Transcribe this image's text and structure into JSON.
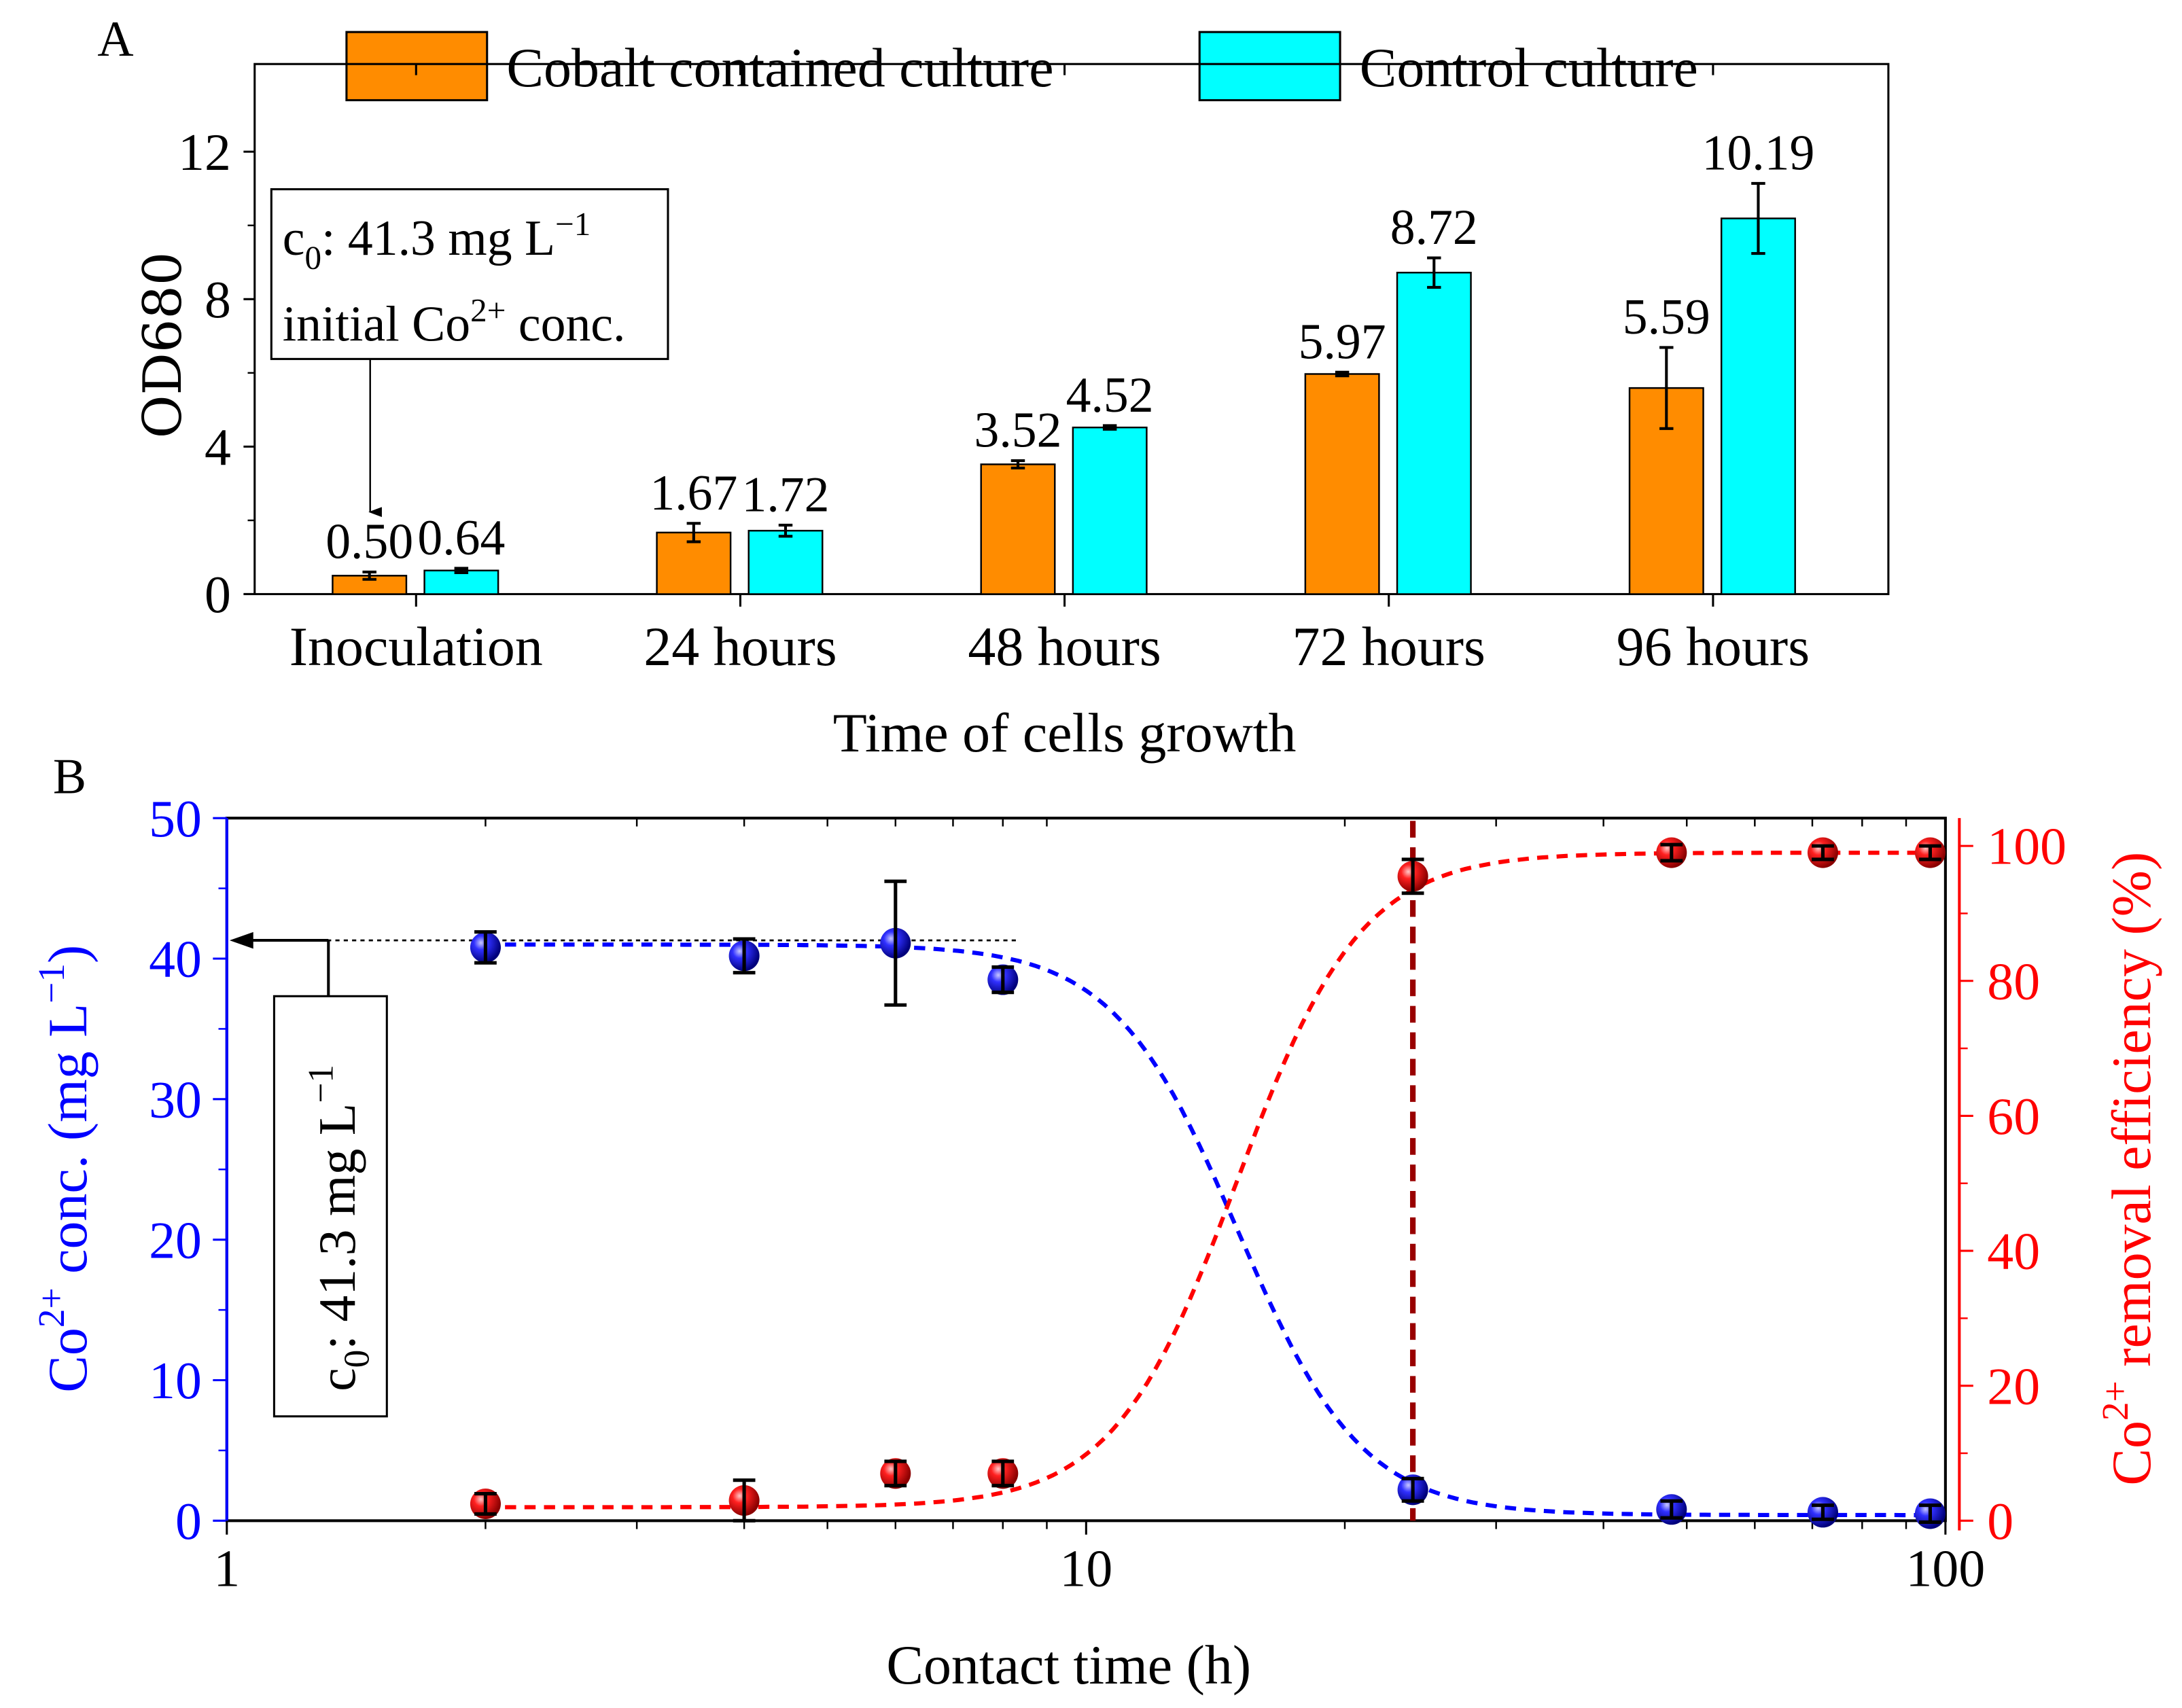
{
  "chart_data": [
    {
      "panel_label": "A",
      "type": "bar",
      "xlabel": "Time of cells growth",
      "ylabel": "OD680",
      "ylim": [
        0,
        12.6
      ],
      "yticks": [
        "0",
        "4",
        "8",
        "12"
      ],
      "categories": [
        "Inoculation",
        "24 hours",
        "48 hours",
        "72 hours",
        "96 hours"
      ],
      "series": [
        {
          "name": "Cobalt contained culture",
          "color": "#FF8C00",
          "values": [
            0.5,
            1.67,
            3.52,
            5.97,
            5.59
          ],
          "errors": [
            0.1,
            0.25,
            0.1,
            0.05,
            1.1
          ],
          "labels": [
            "0.50",
            "1.67",
            "3.52",
            "5.97",
            "5.59"
          ]
        },
        {
          "name": "Control culture",
          "color": "#00FFFF",
          "values": [
            0.64,
            1.72,
            4.52,
            8.72,
            10.19
          ],
          "errors": [
            0.06,
            0.15,
            0.05,
            0.4,
            0.95
          ],
          "labels": [
            "0.64",
            "1.72",
            "4.52",
            "8.72",
            "10.19"
          ]
        }
      ],
      "legend": "top",
      "annotation": {
        "line1_base": "c",
        "line1_sub": "0",
        "line1_rest": ": 41.3 mg L",
        "line1_sup": "−1",
        "line2_pre": "initial Co",
        "line2_sup": "2+",
        "line2_post": " conc."
      }
    },
    {
      "panel_label": "B",
      "type": "scatter",
      "xlabel": "Contact time (h)",
      "xscale": "log",
      "xlim": [
        1,
        100
      ],
      "xticks": [
        "1",
        "10",
        "100"
      ],
      "ylabel_left": {
        "pre": "Co",
        "sup": "2+",
        "mid": " conc. (mg L",
        "sup2": "−1",
        "post": ")"
      },
      "ylabel_right": {
        "pre": "Co",
        "sup": "2+",
        "post": " removal efficiency (%)"
      },
      "ylim_left": [
        0,
        50
      ],
      "ylim_right": [
        0,
        104
      ],
      "yticks_left": [
        "0",
        "10",
        "20",
        "30",
        "40",
        "50"
      ],
      "yticks_right": [
        "0",
        "20",
        "40",
        "60",
        "80",
        "100"
      ],
      "x": [
        2,
        4,
        6,
        8,
        24,
        48,
        72,
        96
      ],
      "series": [
        {
          "name": "Co2+ conc.",
          "axis": "left",
          "color": "#0000FF",
          "values": [
            40.8,
            40.2,
            41.1,
            38.5,
            2.2,
            0.8,
            0.6,
            0.5
          ],
          "errors": [
            1.1,
            1.2,
            4.4,
            0.9,
            0.8,
            0.6,
            0.5,
            0.6
          ],
          "fit": {
            "bottom": 0.4,
            "top": 41.0,
            "x50": 15,
            "n": 6
          }
        },
        {
          "name": "Co2+ removal efficiency",
          "axis": "right",
          "color": "#FF0000",
          "values": [
            2.5,
            3.0,
            7.0,
            7.0,
            95.5,
            99.0,
            99.0,
            99.0
          ],
          "errors": [
            1.5,
            3.0,
            1.8,
            1.8,
            2.5,
            1.2,
            1.0,
            1.0
          ],
          "fit": {
            "bottom": 2.0,
            "top": 99.0,
            "x50": 15,
            "n": 6
          }
        }
      ],
      "reference_line": {
        "value": 41.3,
        "label_base": "c",
        "label_sub": "0",
        "label_rest": ": 41.3 mg L",
        "label_sup": "−1"
      },
      "vertical_marker_x": 24
    }
  ]
}
